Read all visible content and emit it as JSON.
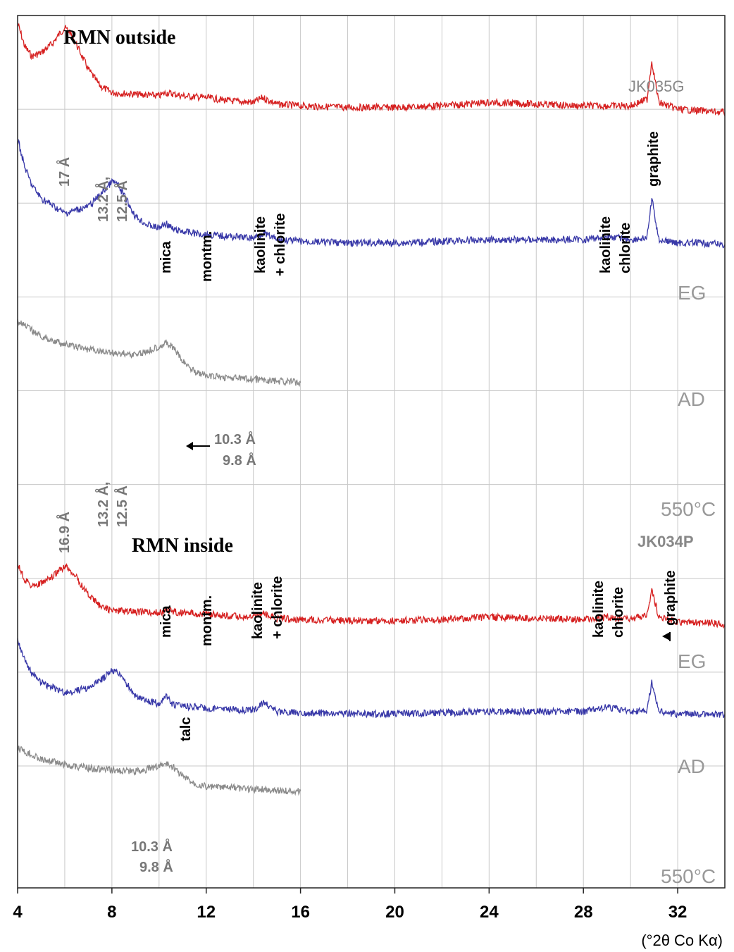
{
  "chart_data": {
    "type": "line",
    "xlabel": "(°2θ Co Kα)",
    "xlim": [
      4,
      34
    ],
    "x_ticks": [
      "4",
      "8",
      "12",
      "16",
      "20",
      "24",
      "28",
      "32"
    ],
    "grid": true,
    "colors": {
      "EG": "#d62020",
      "AD": "#3838a8",
      "550°C": "#8a8a8a"
    },
    "panels": [
      {
        "title": "RMN outside",
        "sample": "JK035G",
        "series": [
          {
            "name": "EG",
            "color": "#d62020",
            "x": [
              4,
              4.3,
              4.6,
              5,
              5.5,
              5.8,
              6.0,
              6.2,
              6.5,
              7,
              7.5,
              8,
              9,
              10,
              10.3,
              11,
              12,
              13,
              14,
              14.4,
              15,
              16,
              18,
              20,
              22,
              24,
              26,
              28,
              29,
              30,
              30.7,
              30.9,
              31.2,
              32,
              33,
              34
            ],
            "y": [
              0.98,
              0.84,
              0.78,
              0.8,
              0.86,
              0.92,
              0.95,
              0.93,
              0.85,
              0.7,
              0.6,
              0.56,
              0.55,
              0.54,
              0.56,
              0.54,
              0.53,
              0.51,
              0.5,
              0.53,
              0.49,
              0.48,
              0.47,
              0.47,
              0.48,
              0.5,
              0.49,
              0.48,
              0.48,
              0.48,
              0.52,
              0.75,
              0.5,
              0.46,
              0.45,
              0.44
            ]
          },
          {
            "name": "AD",
            "color": "#3838a8",
            "x": [
              4,
              4.3,
              4.6,
              5,
              6,
              7,
              7.5,
              8,
              8.2,
              8.5,
              9,
              9.5,
              10,
              10.3,
              10.6,
              11,
              12,
              13,
              14,
              14.4,
              15,
              16,
              18,
              20,
              22,
              24,
              26,
              28,
              29,
              30,
              30.7,
              30.9,
              31.2,
              32,
              33,
              34
            ],
            "y": [
              0.92,
              0.75,
              0.64,
              0.56,
              0.47,
              0.51,
              0.58,
              0.66,
              0.65,
              0.58,
              0.45,
              0.4,
              0.38,
              0.41,
              0.37,
              0.36,
              0.34,
              0.33,
              0.32,
              0.35,
              0.31,
              0.3,
              0.29,
              0.29,
              0.3,
              0.31,
              0.31,
              0.31,
              0.33,
              0.31,
              0.32,
              0.56,
              0.31,
              0.29,
              0.29,
              0.28
            ]
          },
          {
            "name": "550°C",
            "color": "#8a8a8a",
            "x": [
              4,
              5,
              6,
              7,
              8,
              9,
              9.5,
              10,
              10.3,
              10.6,
              11,
              11.5,
              12,
              13,
              14,
              15,
              16
            ],
            "y": [
              0.54,
              0.45,
              0.4,
              0.37,
              0.35,
              0.34,
              0.36,
              0.39,
              0.41,
              0.38,
              0.3,
              0.24,
              0.21,
              0.2,
              0.19,
              0.18,
              0.17
            ]
          }
        ],
        "labels": [
          "17 Å",
          "13.2 Å,",
          "12.5 Å",
          "mica",
          "montm.",
          "kaolinite",
          "+ chlorite",
          "kaolinite",
          "chlorite",
          "graphite",
          "10.3 Å",
          "9.8 Å",
          "EG",
          "AD",
          "550°C"
        ]
      },
      {
        "title": "RMN inside",
        "sample": "JK034P",
        "series": [
          {
            "name": "EG",
            "color": "#d62020",
            "x": [
              4,
              4.3,
              4.6,
              5,
              5.5,
              5.8,
              6.0,
              6.2,
              6.5,
              7,
              7.5,
              8,
              9,
              10,
              10.3,
              11,
              12,
              13,
              14,
              14.4,
              15,
              16,
              18,
              20,
              22,
              24,
              26,
              28,
              29,
              30,
              30.7,
              30.9,
              31.2,
              32,
              33,
              34
            ],
            "y": [
              0.98,
              0.84,
              0.78,
              0.8,
              0.86,
              0.92,
              0.95,
              0.93,
              0.85,
              0.7,
              0.6,
              0.56,
              0.55,
              0.54,
              0.56,
              0.54,
              0.53,
              0.51,
              0.5,
              0.53,
              0.49,
              0.48,
              0.47,
              0.47,
              0.48,
              0.5,
              0.49,
              0.48,
              0.5,
              0.48,
              0.52,
              0.75,
              0.5,
              0.46,
              0.45,
              0.44
            ]
          },
          {
            "name": "AD",
            "color": "#3838a8",
            "x": [
              4,
              4.3,
              4.6,
              5,
              6,
              7,
              7.5,
              8,
              8.2,
              8.5,
              9,
              9.5,
              10,
              10.3,
              10.6,
              11,
              12,
              13,
              14,
              14.4,
              15,
              16,
              18,
              20,
              22,
              24,
              26,
              28,
              29,
              30,
              30.7,
              30.9,
              31.2,
              32,
              33,
              34
            ],
            "y": [
              0.92,
              0.75,
              0.64,
              0.56,
              0.47,
              0.51,
              0.58,
              0.66,
              0.65,
              0.58,
              0.45,
              0.4,
              0.38,
              0.44,
              0.37,
              0.36,
              0.34,
              0.33,
              0.32,
              0.39,
              0.31,
              0.3,
              0.29,
              0.29,
              0.3,
              0.31,
              0.31,
              0.31,
              0.35,
              0.31,
              0.32,
              0.56,
              0.31,
              0.29,
              0.29,
              0.28
            ]
          },
          {
            "name": "550°C",
            "color": "#8a8a8a",
            "x": [
              4,
              5,
              6,
              7,
              8,
              9,
              9.5,
              10,
              10.3,
              10.6,
              11,
              11.5,
              12,
              13,
              14,
              15,
              16
            ],
            "y": [
              0.54,
              0.45,
              0.4,
              0.37,
              0.35,
              0.34,
              0.36,
              0.39,
              0.41,
              0.38,
              0.3,
              0.24,
              0.21,
              0.2,
              0.19,
              0.18,
              0.17
            ]
          }
        ],
        "labels": [
          "16.9 Å",
          "13.2 Å,",
          "12.5 Å",
          "mica",
          "montm.",
          "kaolinite",
          "+ chlorite",
          "talc",
          "kaolinite",
          "chlorite",
          "graphite",
          "10.3 Å",
          "9.8 Å",
          "EG",
          "AD",
          "550°C"
        ]
      }
    ]
  }
}
